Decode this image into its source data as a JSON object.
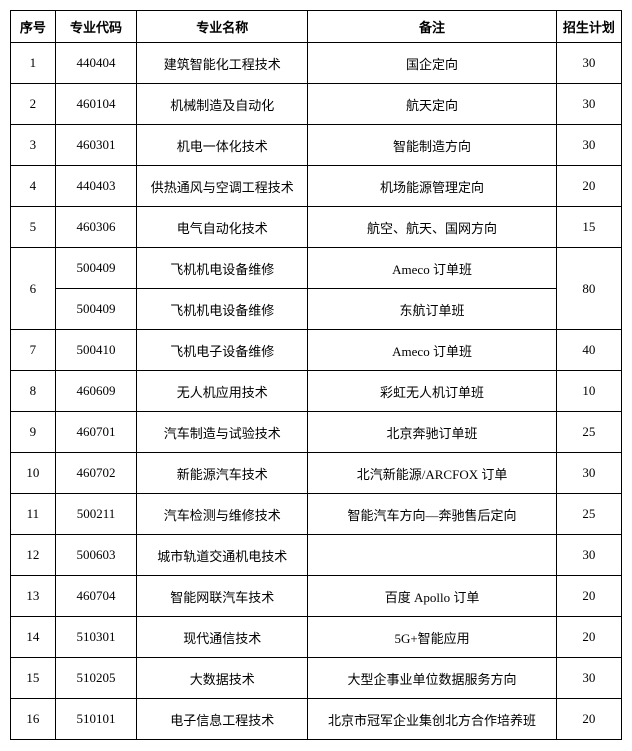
{
  "headers": {
    "seq": "序号",
    "code": "专业代码",
    "name": "专业名称",
    "remark": "备注",
    "plan": "招生计划"
  },
  "rows": [
    {
      "seq": "1",
      "code": "440404",
      "name": "建筑智能化工程技术",
      "remark": "国企定向",
      "plan": "30"
    },
    {
      "seq": "2",
      "code": "460104",
      "name": "机械制造及自动化",
      "remark": "航天定向",
      "plan": "30"
    },
    {
      "seq": "3",
      "code": "460301",
      "name": "机电一体化技术",
      "remark": "智能制造方向",
      "plan": "30"
    },
    {
      "seq": "4",
      "code": "440403",
      "name": "供热通风与空调工程技术",
      "remark": "机场能源管理定向",
      "plan": "20"
    },
    {
      "seq": "5",
      "code": "460306",
      "name": "电气自动化技术",
      "remark": "航空、航天、国网方向",
      "plan": "15"
    },
    {
      "seq": "6",
      "code": "500409",
      "name": "飞机机电设备维修",
      "remark": "Ameco 订单班",
      "plan": "80",
      "rowspan_seq": 2,
      "rowspan_plan": 2
    },
    {
      "seq": "",
      "code": "500409",
      "name": "飞机机电设备维修",
      "remark": "东航订单班",
      "plan": "",
      "sub": true
    },
    {
      "seq": "7",
      "code": "500410",
      "name": "飞机电子设备维修",
      "remark": "Ameco 订单班",
      "plan": "40"
    },
    {
      "seq": "8",
      "code": "460609",
      "name": "无人机应用技术",
      "remark": "彩虹无人机订单班",
      "plan": "10"
    },
    {
      "seq": "9",
      "code": "460701",
      "name": "汽车制造与试验技术",
      "remark": "北京奔驰订单班",
      "plan": "25"
    },
    {
      "seq": "10",
      "code": "460702",
      "name": "新能源汽车技术",
      "remark": "北汽新能源/ARCFOX 订单",
      "plan": "30"
    },
    {
      "seq": "11",
      "code": "500211",
      "name": "汽车检测与维修技术",
      "remark": "智能汽车方向—奔驰售后定向",
      "plan": "25"
    },
    {
      "seq": "12",
      "code": "500603",
      "name": "城市轨道交通机电技术",
      "remark": "",
      "plan": "30"
    },
    {
      "seq": "13",
      "code": "460704",
      "name": "智能网联汽车技术",
      "remark": "百度 Apollo 订单",
      "plan": "20"
    },
    {
      "seq": "14",
      "code": "510301",
      "name": "现代通信技术",
      "remark": "5G+智能应用",
      "plan": "20"
    },
    {
      "seq": "15",
      "code": "510205",
      "name": "大数据技术",
      "remark": "大型企事业单位数据服务方向",
      "plan": "30"
    },
    {
      "seq": "16",
      "code": "510101",
      "name": "电子信息工程技术",
      "remark": "北京市冠军企业集创北方合作培养班",
      "plan": "20"
    }
  ]
}
